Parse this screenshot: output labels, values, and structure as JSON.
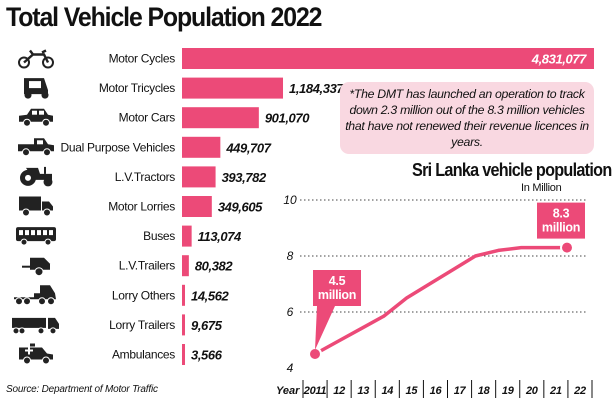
{
  "title": "Total Vehicle Population 2022",
  "note": "*The DMT has launched an operation to track down 2.3 million out of the 8.3 million vehicles that have not renewed their revenue licences in years.",
  "source": "Source: Department of Motor Traffic",
  "accent": "#ec4a78",
  "chart_data": [
    {
      "type": "bar",
      "orientation": "horizontal",
      "title": "Total Vehicle Population 2022",
      "categories": [
        "Motor Cycles",
        "Motor Tricycles",
        "Motor Cars",
        "Dual Purpose Vehicles",
        "L.V.Tractors",
        "Motor Lorries",
        "Buses",
        "L.V.Trailers",
        "Lorry Others",
        "Lorry Trailers",
        "Ambulances"
      ],
      "values": [
        4831077,
        1184337,
        901070,
        449707,
        393782,
        349605,
        113074,
        80382,
        14562,
        9675,
        3566
      ],
      "value_labels": [
        "4,831,077",
        "1,184,337",
        "901,070",
        "449,707",
        "393,782",
        "349,605",
        "113,074",
        "80,382",
        "14,562",
        "9,675",
        "3,566"
      ],
      "icons": [
        "motorcycle-icon",
        "tricycle-icon",
        "car-icon",
        "pickup-icon",
        "tractor-icon",
        "lorry-icon",
        "bus-icon",
        "trailer-icon",
        "prime-mover-icon",
        "lorry-trailer-icon",
        "ambulance-icon"
      ]
    },
    {
      "type": "line",
      "title": "Sri Lanka vehicle population",
      "unit": "In Million",
      "xlabel": "Year",
      "x": [
        "2011",
        "12",
        "13",
        "14",
        "15",
        "16",
        "17",
        "18",
        "19",
        "20",
        "21",
        "22"
      ],
      "values": [
        4.5,
        4.95,
        5.4,
        5.85,
        6.5,
        7.0,
        7.5,
        8.0,
        8.2,
        8.3,
        8.3,
        8.3
      ],
      "ylim": [
        4,
        10
      ],
      "yticks": [
        "4",
        "6",
        "8",
        "10"
      ],
      "annotations": [
        {
          "x": "2011",
          "label": "4.5\nmillion"
        },
        {
          "x": "22",
          "label": "8.3\nmillion"
        }
      ],
      "grid": true
    }
  ]
}
